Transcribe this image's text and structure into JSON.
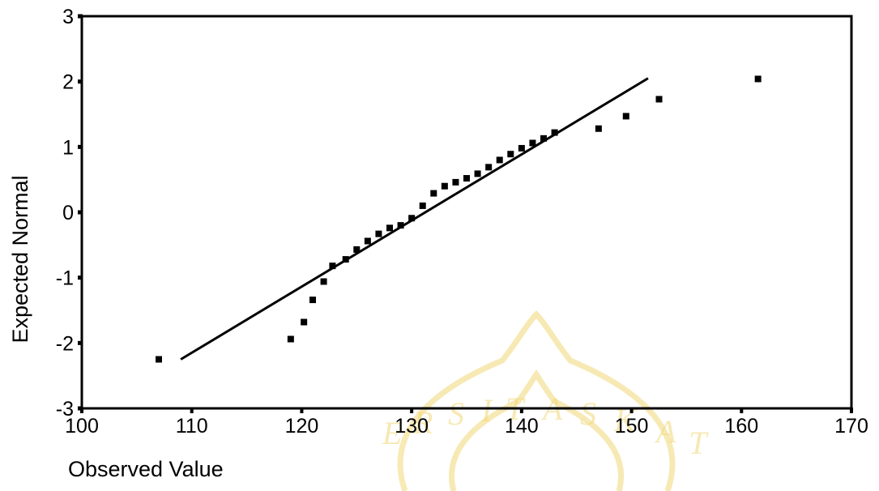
{
  "chart_data": {
    "type": "scatter",
    "title": "",
    "xlabel": "Observed Value",
    "ylabel": "Expected Normal",
    "xlim": [
      100,
      170
    ],
    "ylim": [
      -3,
      3
    ],
    "x_ticks": [
      100,
      110,
      120,
      130,
      140,
      150,
      160,
      170
    ],
    "y_ticks": [
      -3,
      -2,
      -1,
      0,
      1,
      2,
      3
    ],
    "x_tick_labels": [
      "100",
      "110",
      "120",
      "130",
      "140",
      "150",
      "160",
      "170"
    ],
    "y_tick_labels": [
      "-3",
      "-2",
      "-1",
      "0",
      "1",
      "2",
      "3"
    ],
    "grid": false,
    "legend": "none",
    "reference_line": {
      "x": [
        109,
        151.5
      ],
      "y": [
        -2.25,
        2.05
      ]
    },
    "points": [
      {
        "x": 107,
        "y": -2.25
      },
      {
        "x": 119,
        "y": -1.94
      },
      {
        "x": 120.2,
        "y": -1.68
      },
      {
        "x": 121,
        "y": -1.34
      },
      {
        "x": 122,
        "y": -1.06
      },
      {
        "x": 122.8,
        "y": -0.82
      },
      {
        "x": 124,
        "y": -0.72
      },
      {
        "x": 125,
        "y": -0.57
      },
      {
        "x": 126,
        "y": -0.44
      },
      {
        "x": 127,
        "y": -0.33
      },
      {
        "x": 128,
        "y": -0.24
      },
      {
        "x": 129,
        "y": -0.2
      },
      {
        "x": 130,
        "y": -0.09
      },
      {
        "x": 131,
        "y": 0.1
      },
      {
        "x": 132,
        "y": 0.29
      },
      {
        "x": 133,
        "y": 0.4
      },
      {
        "x": 134,
        "y": 0.46
      },
      {
        "x": 135,
        "y": 0.52
      },
      {
        "x": 136,
        "y": 0.59
      },
      {
        "x": 137,
        "y": 0.69
      },
      {
        "x": 138,
        "y": 0.8
      },
      {
        "x": 139,
        "y": 0.89
      },
      {
        "x": 140,
        "y": 0.98
      },
      {
        "x": 141,
        "y": 1.06
      },
      {
        "x": 142,
        "y": 1.13
      },
      {
        "x": 143,
        "y": 1.22
      },
      {
        "x": 147,
        "y": 1.28
      },
      {
        "x": 149.5,
        "y": 1.47
      },
      {
        "x": 152.5,
        "y": 1.73
      },
      {
        "x": 161.5,
        "y": 2.04
      }
    ]
  }
}
